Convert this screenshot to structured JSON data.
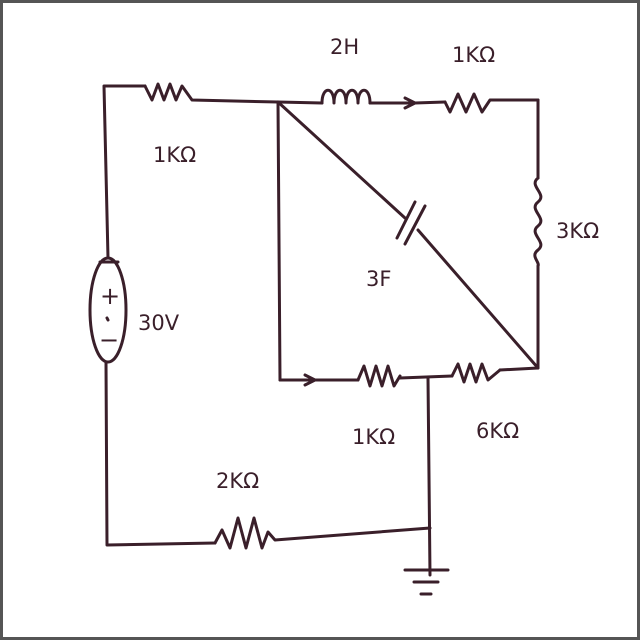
{
  "components": {
    "source": {
      "voltage": "30V",
      "plus": "+",
      "minus": "−"
    },
    "r_left_top": "1KΩ",
    "inductor": "2H",
    "r_top_right": "1KΩ",
    "r_right": "3KΩ",
    "capacitor": "3F",
    "r_mid_left": "1KΩ",
    "r_mid_right": "6KΩ",
    "r_bottom": "2KΩ"
  },
  "colors": {
    "ink": "#3a1f2a",
    "paper": "#ffffff",
    "frame": "#555555"
  }
}
